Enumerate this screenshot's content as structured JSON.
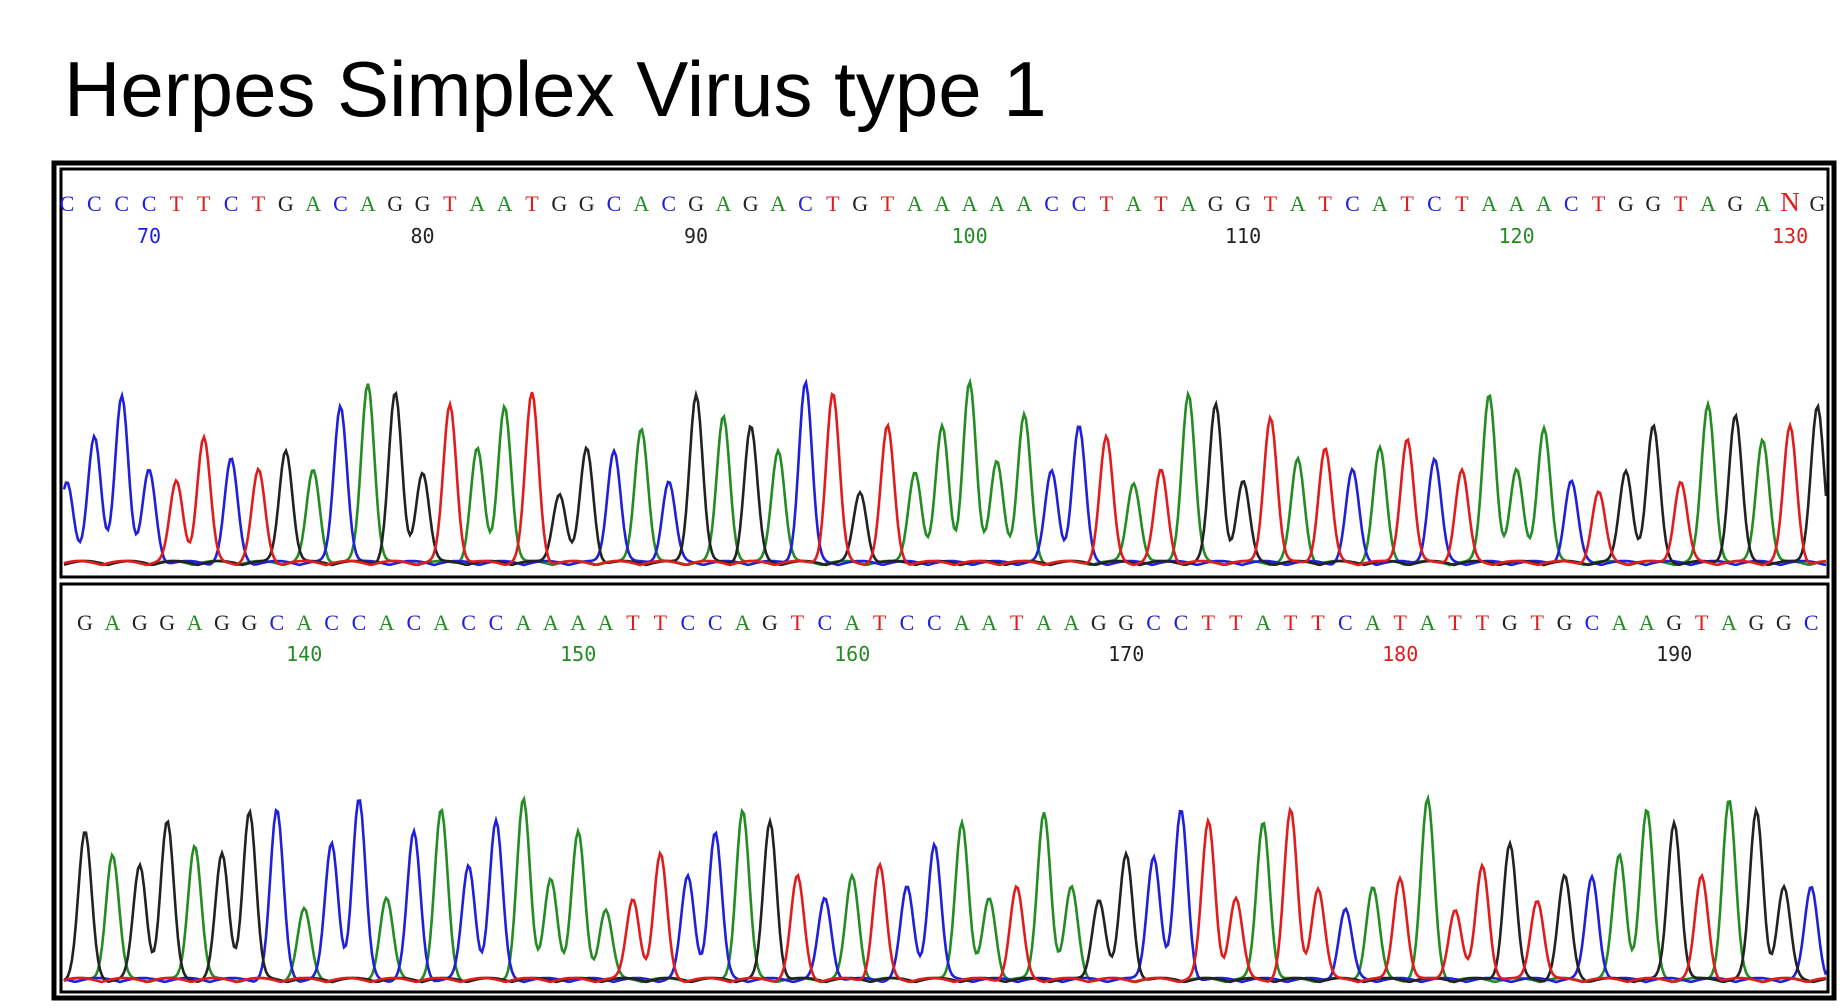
{
  "title": "Herpes Simplex Virus type 1",
  "base_colors": {
    "A": "#238c23",
    "C": "#2020d8",
    "G": "#222222",
    "T": "#e01c1c",
    "N": "#e01c1c"
  },
  "panels": [
    {
      "bases": [
        "C",
        "C",
        "C",
        "C",
        "T",
        "T",
        "C",
        "T",
        "G",
        "A",
        "C",
        "A",
        "G",
        "G",
        "T",
        "A",
        "A",
        "T",
        "G",
        "G",
        "C",
        "A",
        "C",
        "G",
        "A",
        "G",
        "A",
        "C",
        "T",
        "G",
        "T",
        "A",
        "A",
        "A",
        "A",
        "A",
        "C",
        "C",
        "T",
        "A",
        "T",
        "A",
        "G",
        "G",
        "T",
        "A",
        "T",
        "C",
        "A",
        "T",
        "C",
        "T",
        "A",
        "A",
        "A",
        "C",
        "T",
        "G",
        "G",
        "T",
        "A",
        "G",
        "A",
        "N",
        "G"
      ],
      "labels": [
        null,
        null,
        null,
        "70",
        null,
        null,
        null,
        null,
        null,
        null,
        null,
        null,
        null,
        "80",
        null,
        null,
        null,
        null,
        null,
        null,
        null,
        null,
        null,
        "90",
        null,
        null,
        null,
        null,
        null,
        null,
        null,
        null,
        null,
        "100",
        null,
        null,
        null,
        null,
        null,
        null,
        null,
        null,
        null,
        "110",
        null,
        null,
        null,
        null,
        null,
        null,
        null,
        null,
        null,
        "120",
        null,
        null,
        null,
        null,
        null,
        null,
        null,
        null,
        null,
        "130",
        null
      ]
    },
    {
      "bases": [
        "G",
        "A",
        "G",
        "G",
        "A",
        "G",
        "G",
        "C",
        "A",
        "C",
        "C",
        "A",
        "C",
        "A",
        "C",
        "C",
        "A",
        "A",
        "A",
        "A",
        "T",
        "T",
        "C",
        "C",
        "A",
        "G",
        "T",
        "C",
        "A",
        "T",
        "C",
        "C",
        "A",
        "A",
        "T",
        "A",
        "A",
        "G",
        "G",
        "C",
        "C",
        "T",
        "T",
        "A",
        "T",
        "T",
        "C",
        "A",
        "T",
        "A",
        "T",
        "T",
        "G",
        "T",
        "G",
        "C",
        "A",
        "A",
        "G",
        "T",
        "A",
        "G",
        "G",
        "C"
      ],
      "labels": [
        null,
        null,
        null,
        null,
        null,
        null,
        null,
        null,
        "140",
        null,
        null,
        null,
        null,
        null,
        null,
        null,
        null,
        null,
        "150",
        null,
        null,
        null,
        null,
        null,
        null,
        null,
        null,
        null,
        "160",
        null,
        null,
        null,
        null,
        null,
        null,
        null,
        null,
        null,
        "170",
        null,
        null,
        null,
        null,
        null,
        null,
        null,
        null,
        null,
        "180",
        null,
        null,
        null,
        null,
        null,
        null,
        null,
        null,
        null,
        "190",
        null,
        null,
        null,
        null,
        null
      ]
    }
  ]
}
